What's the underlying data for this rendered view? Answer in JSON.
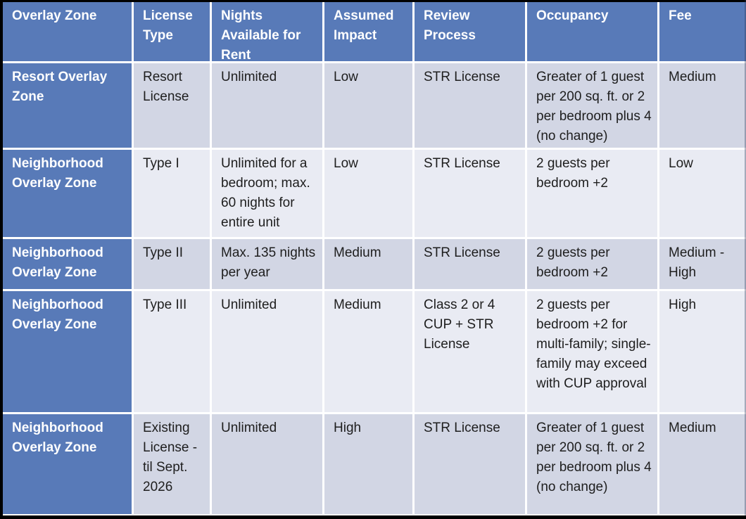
{
  "table": {
    "headers": [
      "Overlay Zone",
      "License Type",
      "Nights Available for Rent",
      "Assumed Impact",
      "Review Process",
      "Occupancy",
      "Fee"
    ],
    "rows": [
      {
        "zone": "Resort Overlay Zone",
        "license_type": "Resort License",
        "nights": "Unlimited",
        "impact": "Low",
        "review": "STR License",
        "occupancy": "Greater of 1 guest per 200 sq. ft. or 2 per bedroom plus 4 (no change)",
        "fee": "Medium"
      },
      {
        "zone": "Neighborhood Overlay Zone",
        "license_type": "Type I",
        "nights": "Unlimited for a bedroom; max. 60 nights for entire unit",
        "impact": "Low",
        "review": "STR License",
        "occupancy": "2 guests per bedroom +2",
        "fee": "Low"
      },
      {
        "zone": "Neighborhood Overlay Zone",
        "license_type": "Type II",
        "nights": "Max. 135 nights per year",
        "impact": "Medium",
        "review": "STR License",
        "occupancy": "2 guests per bedroom +2",
        "fee": "Medium - High"
      },
      {
        "zone": "Neighborhood Overlay Zone",
        "license_type": "Type III",
        "nights": "Unlimited",
        "impact": "Medium",
        "review": "Class 2 or 4 CUP + STR License",
        "occupancy": "2 guests per bedroom +2 for multi-family; single-family may exceed with CUP approval",
        "fee": "High"
      },
      {
        "zone": "Neighborhood Overlay Zone",
        "license_type": "Existing License - til Sept. 2026",
        "nights": "Unlimited",
        "impact": "High",
        "review": "STR License",
        "occupancy": "Greater of 1 guest per 200 sq. ft. or 2 per bedroom plus 4 (no change)",
        "fee": "Medium"
      }
    ]
  },
  "colors": {
    "header_blue": "#587ab8",
    "band_dark": "#d2d6e4",
    "band_light": "#e9ebf3",
    "grid_line": "#ffffff",
    "header_text": "#ffffff",
    "body_text": "#1e1e1e",
    "slide_edge": "#000000"
  }
}
